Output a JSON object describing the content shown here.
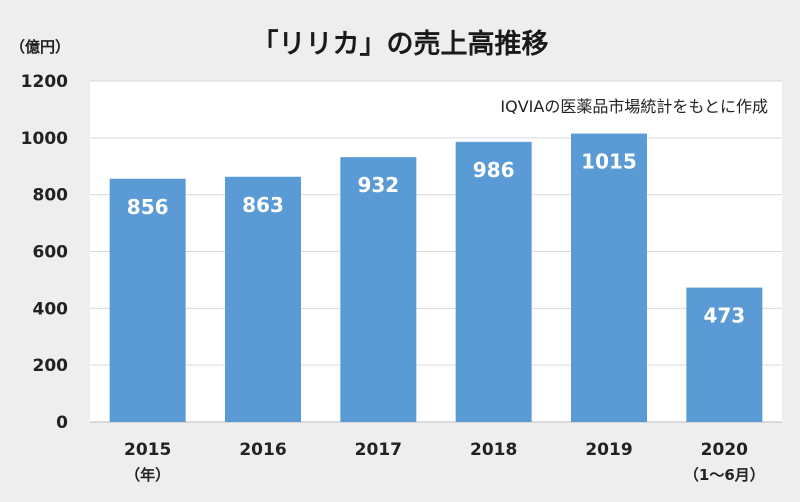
{
  "chart_data": {
    "type": "bar",
    "title": "「リリカ」の売上高推移",
    "ylabel": "（億円）",
    "source_note": "IQVIAの医薬品市場統計をもとに作成",
    "ylim": [
      0,
      1200
    ],
    "yticks": [
      0,
      200,
      400,
      600,
      800,
      1000,
      1200
    ],
    "categories": [
      "2015",
      "2016",
      "2017",
      "2018",
      "2019",
      "2020"
    ],
    "category_notes": [
      "（年）",
      "",
      "",
      "",
      "",
      "（1～6月）"
    ],
    "values": [
      856,
      863,
      932,
      986,
      1015,
      473
    ],
    "data_labels": [
      "856",
      "863",
      "932",
      "986",
      "1015",
      "473"
    ],
    "bar_color": "#5b9bd5",
    "grid": true,
    "legend": "none"
  }
}
